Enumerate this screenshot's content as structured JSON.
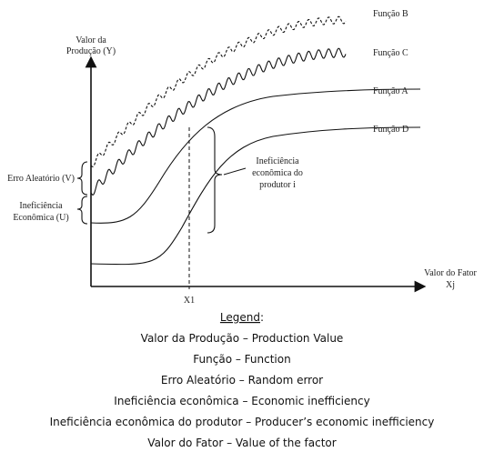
{
  "diagram": {
    "functions": [
      "Função B",
      "Função C",
      "Função A",
      "Função D"
    ],
    "y_axis_label": [
      "Valor da",
      "Produção (Y)"
    ],
    "x_axis_label": [
      "Valor do Fator",
      "Xj"
    ],
    "x1_label": "X1",
    "random_error_label": "Erro Aleatório (V)",
    "inefficiency_label": [
      "Ineficiência",
      "Econômica (U)"
    ],
    "producer_inefficiency_label": [
      "Ineficiência",
      "econômica do",
      "produtor i"
    ]
  },
  "legend": {
    "title": "Legend",
    "colon": ":",
    "items": [
      "Valor da Produção – Production Value",
      "Função – Function",
      "Erro Aleatório – Random error",
      "Ineficiência econômica – Economic inefficiency",
      "Ineficiência econômica do produtor – Producer’s economic inefficiency",
      "Valor do Fator – Value of the factor"
    ]
  }
}
